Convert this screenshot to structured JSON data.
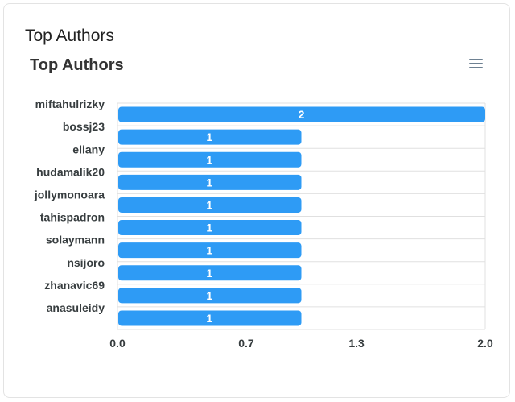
{
  "card": {
    "title": "Top Authors"
  },
  "menu": {
    "icon": "hamburger-menu-icon"
  },
  "colors": {
    "bar": "#2e9bf5",
    "grid": "#e0e0e0",
    "text": "#373d3f"
  },
  "chart_data": {
    "type": "bar",
    "orientation": "horizontal",
    "title": "Top Authors",
    "categories": [
      "miftahulrizky",
      "bossj23",
      "eliany",
      "hudamalik20",
      "jollymonoara",
      "tahispadron",
      "solaymann",
      "nsijoro",
      "zhanavic69",
      "anasuleidy"
    ],
    "values": [
      2,
      1,
      1,
      1,
      1,
      1,
      1,
      1,
      1,
      1
    ],
    "xlim": [
      0,
      2
    ],
    "xticks": [
      "0.0",
      "0.7",
      "1.3",
      "2.0"
    ],
    "data_labels": true,
    "grid": true,
    "legend": "none"
  }
}
